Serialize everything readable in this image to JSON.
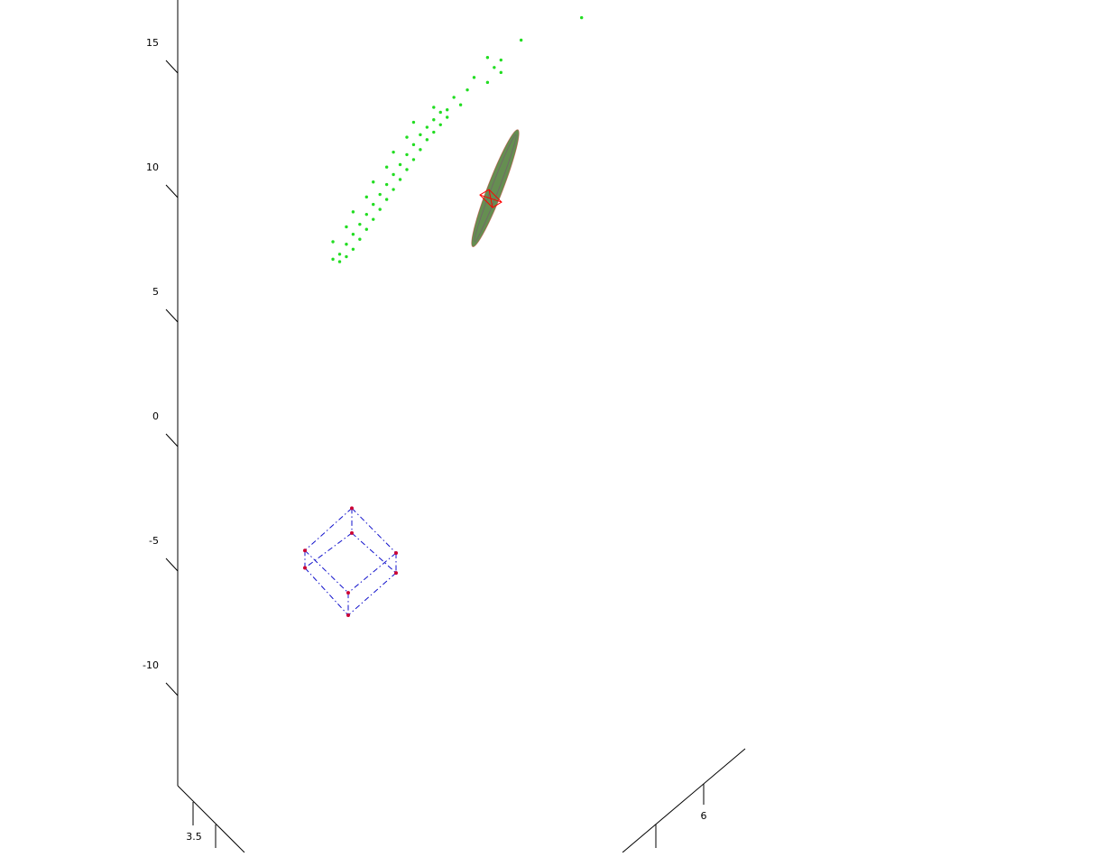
{
  "chart_data": {
    "type": "scatter",
    "title": "",
    "xlabel": "",
    "ylabel": "",
    "zlabel": "",
    "view": "3d",
    "grid": false,
    "legend": "none",
    "z_axis": {
      "ticks": [
        15,
        10,
        5,
        0,
        -5,
        -10
      ],
      "tick_labels": [
        "15",
        "10",
        "5",
        "0",
        "-5",
        "-10"
      ]
    },
    "x_axis": {
      "ticks": [
        3.5
      ],
      "tick_labels": [
        "3.5"
      ]
    },
    "y_axis": {
      "ticks": [
        6
      ],
      "tick_labels": [
        "6"
      ]
    },
    "colors": {
      "samples": "#22dd22",
      "ellipsoid": "#4a7a32",
      "ellipsoid_edge": "#c04030",
      "mean_marker": "#ff0000",
      "cube_edges": "#1010cc",
      "cube_vertices": "#cc0033"
    },
    "series": [
      {
        "kind": "points",
        "points_z": [
          16.5,
          15.6,
          14.9,
          14.8,
          14.5,
          14.3,
          14.1,
          13.9,
          13.6,
          13.3,
          13.0,
          12.8,
          12.7,
          12.5,
          12.4,
          12.2,
          12.1,
          11.9,
          11.8,
          11.6,
          11.4,
          11.2,
          11.0,
          10.8,
          10.6,
          10.4,
          10.2,
          10.0,
          9.8,
          9.6,
          9.4,
          9.2,
          9.0,
          8.8,
          8.6,
          8.4,
          8.2,
          8.0,
          7.8,
          7.6,
          7.4,
          7.2,
          7.0,
          6.9,
          6.8,
          6.7,
          12.9,
          12.3,
          11.7,
          11.1,
          10.5,
          9.9,
          9.3,
          8.7,
          8.1,
          7.5
        ],
        "points_h": [
          0.86,
          0.77,
          0.72,
          0.74,
          0.73,
          0.74,
          0.7,
          0.72,
          0.69,
          0.67,
          0.68,
          0.66,
          0.65,
          0.66,
          0.64,
          0.65,
          0.63,
          0.64,
          0.62,
          0.63,
          0.61,
          0.62,
          0.6,
          0.61,
          0.59,
          0.6,
          0.58,
          0.59,
          0.57,
          0.58,
          0.56,
          0.57,
          0.55,
          0.56,
          0.54,
          0.55,
          0.53,
          0.54,
          0.52,
          0.53,
          0.51,
          0.52,
          0.5,
          0.51,
          0.49,
          0.5,
          0.64,
          0.61,
          0.6,
          0.58,
          0.57,
          0.55,
          0.54,
          0.52,
          0.51,
          0.49
        ]
      },
      {
        "kind": "ellipsoid",
        "from_z": 7.3,
        "to_z": 12.0
      },
      {
        "kind": "mean-marker",
        "z": 9.2
      },
      {
        "kind": "wireframe-cube",
        "corners_z": [
          -3.2,
          -4.2,
          -4.9,
          -5.0,
          -5.6,
          -5.8,
          -6.6,
          -7.5
        ]
      }
    ]
  }
}
